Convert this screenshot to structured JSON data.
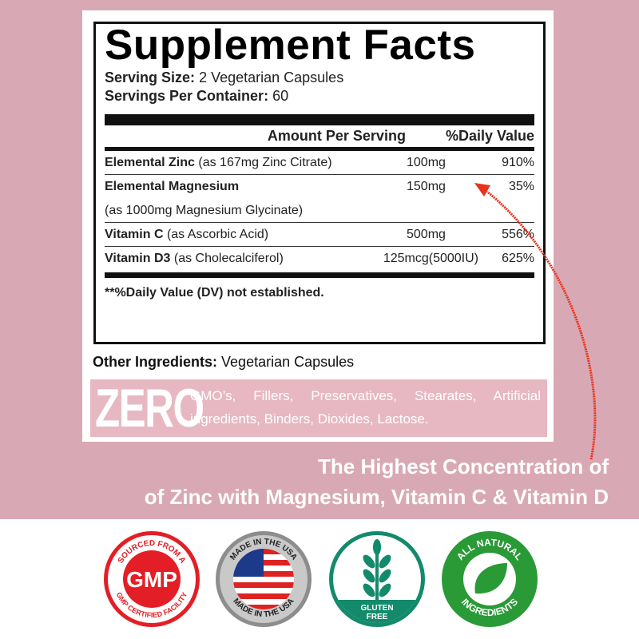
{
  "facts": {
    "title": "Supplement Facts",
    "serving_size_label": "Serving Size:",
    "serving_size": "2 Vegetarian Capsules",
    "servings_label": "Servings Per Container:",
    "servings": "60",
    "amount_header": "Amount Per Serving",
    "dv_header": "%Daily Value",
    "rows": [
      {
        "name": "Elemental Zinc",
        "detail": "(as 167mg Zinc Citrate)",
        "amount": "100mg",
        "dv": "910%"
      },
      {
        "name": "Elemental Magnesium",
        "detail": "",
        "amount": "150mg",
        "dv": "35%"
      },
      {
        "name": "",
        "detail": "(as 1000mg Magnesium Glycinate)",
        "amount": "",
        "dv": ""
      },
      {
        "name": "Vitamin C",
        "detail": "(as Ascorbic Acid)",
        "amount": "500mg",
        "dv": "556%"
      },
      {
        "name": "Vitamin D3",
        "detail": "(as Cholecalciferol)",
        "amount": "125mcg(5000IU)",
        "dv": "625%"
      }
    ],
    "footnote": "**%Daily Value (DV) not established."
  },
  "other": {
    "label": "Other Ingredients:",
    "value": "Vegetarian Capsules"
  },
  "zero": {
    "big": "ZERO",
    "text": "GMO’s, Fillers, Preservatives, Stearates, Artificial ingredients, Binders, Dioxides, Lactose."
  },
  "slogan": {
    "line1": "The Highest Concentration of",
    "line2": "of Zinc with Magnesium, Vitamin C & Vitamin D"
  },
  "badges": {
    "gmp": {
      "top": "SOURCED FROM A",
      "center": "GMP",
      "bottom": "GMP CERTIFIED FACILITY"
    },
    "usa": {
      "top": "MADE IN THE USA",
      "bottom": "MADE IN THE USA"
    },
    "gluten": {
      "line1": "GLUTEN",
      "line2": "FREE"
    },
    "natural": {
      "top": "ALL NATURAL",
      "bottom": "INGREDIENTS"
    }
  },
  "colors": {
    "background": "#d8a9b4",
    "zero_box": "#e7b8c1",
    "arrow": "#e8321e",
    "gmp_red": "#e41e26",
    "gluten_green": "#138a6b",
    "natural_green": "#2a9a36"
  }
}
